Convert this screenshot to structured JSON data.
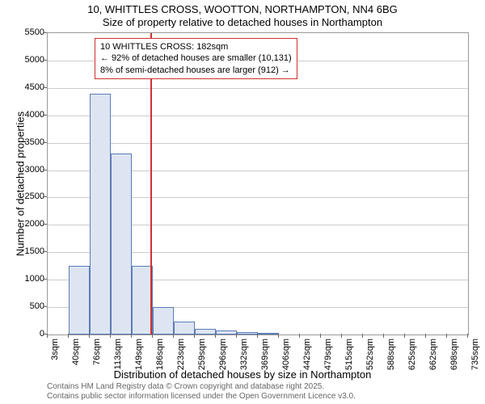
{
  "chart": {
    "type": "histogram",
    "title_main": "10, WHITTLES CROSS, WOOTTON, NORTHAMPTON, NN4 6BG",
    "title_sub": "Size of property relative to detached houses in Northampton",
    "title_fontsize": 13,
    "y_axis_label": "Number of detached properties",
    "x_axis_label": "Distribution of detached houses by size in Northampton",
    "axis_label_fontsize": 13,
    "tick_fontsize": 11,
    "background_color": "#ffffff",
    "plot_border_color": "#999999",
    "grid_color": "#cccccc",
    "bar_fill_color": "#dde5f2",
    "bar_border_color": "#5b7bb8",
    "reference_line_color": "#d03030",
    "annotation_border_color": "#d03030",
    "ylim": [
      0,
      5500
    ],
    "ytick_step": 500,
    "y_ticks": [
      0,
      500,
      1000,
      1500,
      2000,
      2500,
      3000,
      3500,
      4000,
      4500,
      5000,
      5500
    ],
    "x_tick_labels": [
      "3sqm",
      "40sqm",
      "76sqm",
      "113sqm",
      "149sqm",
      "186sqm",
      "223sqm",
      "259sqm",
      "296sqm",
      "332sqm",
      "369sqm",
      "406sqm",
      "442sqm",
      "479sqm",
      "515sqm",
      "552sqm",
      "588sqm",
      "625sqm",
      "662sqm",
      "698sqm",
      "735sqm"
    ],
    "bars": [
      {
        "value": 0
      },
      {
        "value": 1260
      },
      {
        "value": 4400
      },
      {
        "value": 3300
      },
      {
        "value": 1250
      },
      {
        "value": 500
      },
      {
        "value": 230
      },
      {
        "value": 100
      },
      {
        "value": 70
      },
      {
        "value": 40
      },
      {
        "value": 20
      },
      {
        "value": 0
      },
      {
        "value": 0
      },
      {
        "value": 0
      },
      {
        "value": 0
      },
      {
        "value": 0
      },
      {
        "value": 0
      },
      {
        "value": 0
      },
      {
        "value": 0
      },
      {
        "value": 0
      }
    ],
    "reference_line_x_index": 4.9,
    "annotation": {
      "line1": "10 WHITTLES CROSS: 182sqm",
      "line2": "← 92% of detached houses are smaller (10,131)",
      "line3": "8% of semi-detached houses are larger (912) →"
    },
    "footer_line1": "Contains HM Land Registry data © Crown copyright and database right 2025.",
    "footer_line2": "Contains public sector information licensed under the Open Government Licence v3.0."
  }
}
